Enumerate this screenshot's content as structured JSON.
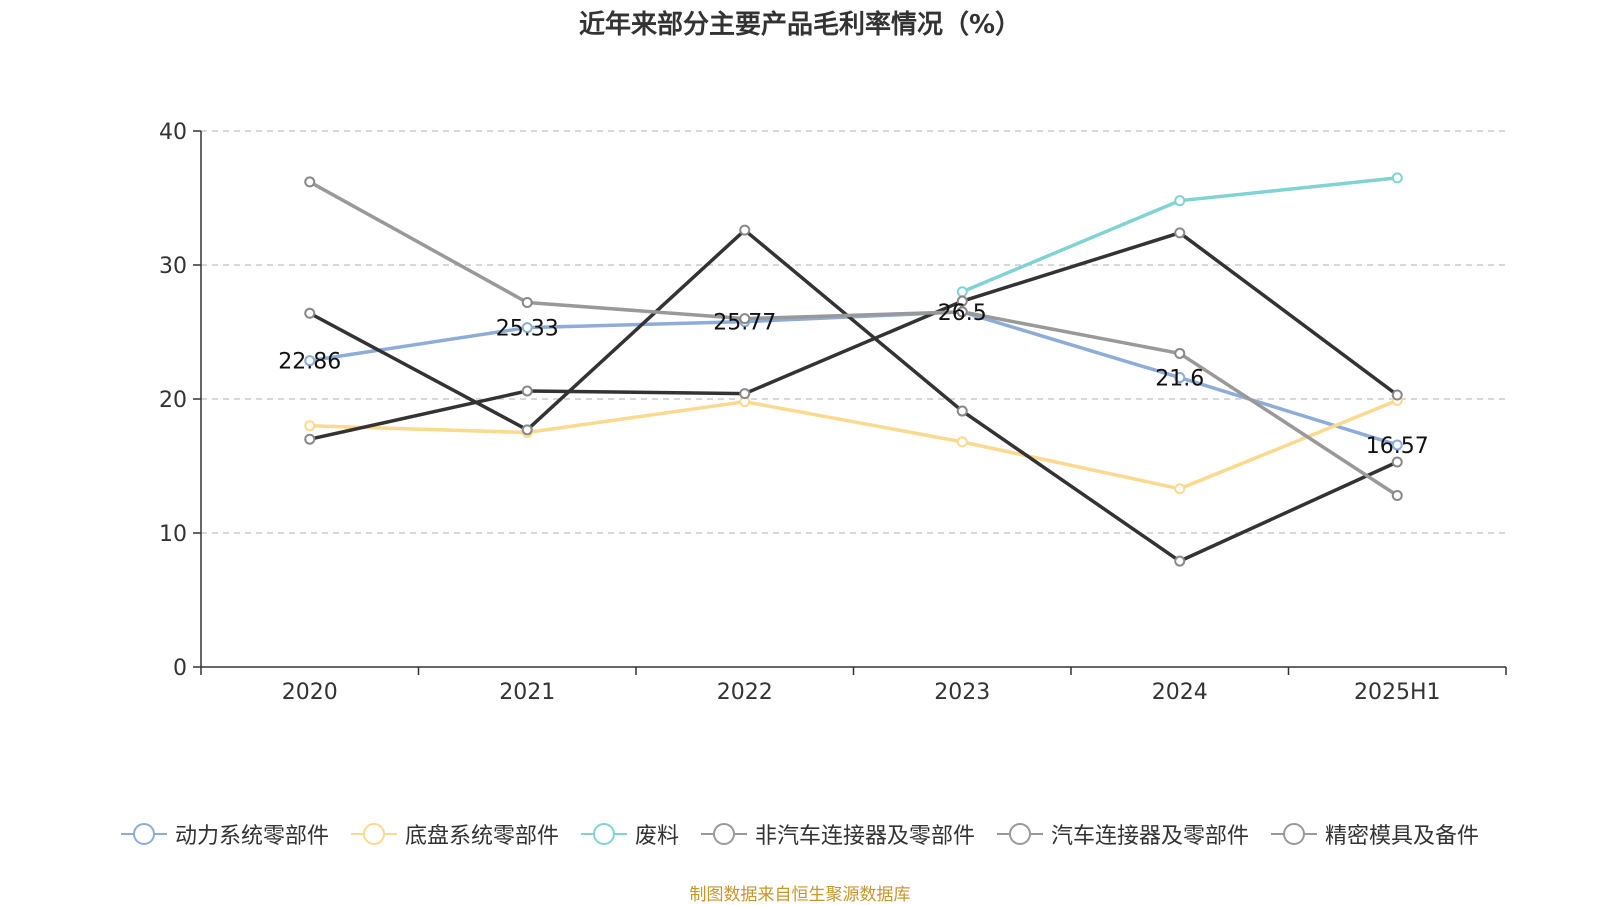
{
  "chart_data": {
    "type": "line",
    "title": "近年来部分主要产品毛利率情况（%）",
    "categories": [
      "2020",
      "2021",
      "2022",
      "2023",
      "2024",
      "2025H1"
    ],
    "ylim": [
      0,
      40
    ],
    "yticks": [
      "0",
      "10",
      "20",
      "30",
      "40"
    ],
    "grid": true,
    "legend_position": "bottom",
    "series": [
      {
        "name": "动力系统零部件",
        "color": "#8eacd8",
        "values": [
          22.86,
          25.33,
          25.77,
          26.5,
          21.6,
          16.57
        ],
        "labels": [
          "22.86",
          "25.33",
          "25.77",
          "26.5",
          "21.6",
          "16.57"
        ]
      },
      {
        "name": "底盘系统零部件",
        "color": "#fbd98f",
        "values": [
          18.0,
          17.5,
          19.8,
          16.8,
          13.3,
          19.9
        ]
      },
      {
        "name": "废料",
        "color": "#7fd3d3",
        "values": [
          null,
          null,
          null,
          28.0,
          34.8,
          36.5
        ]
      },
      {
        "name": "非汽车连接器及零部件",
        "color": "#333333",
        "values": [
          26.4,
          17.7,
          32.6,
          19.1,
          7.9,
          15.3
        ]
      },
      {
        "name": "汽车连接器及零部件",
        "color": "#333333",
        "values": [
          17.0,
          20.6,
          20.4,
          27.3,
          32.4,
          20.3
        ]
      },
      {
        "name": "精密模具及备件",
        "color": "#999999",
        "values": [
          36.2,
          27.2,
          26.0,
          26.5,
          23.4,
          12.8
        ]
      }
    ],
    "source_note": "制图数据来自恒生聚源数据库"
  }
}
